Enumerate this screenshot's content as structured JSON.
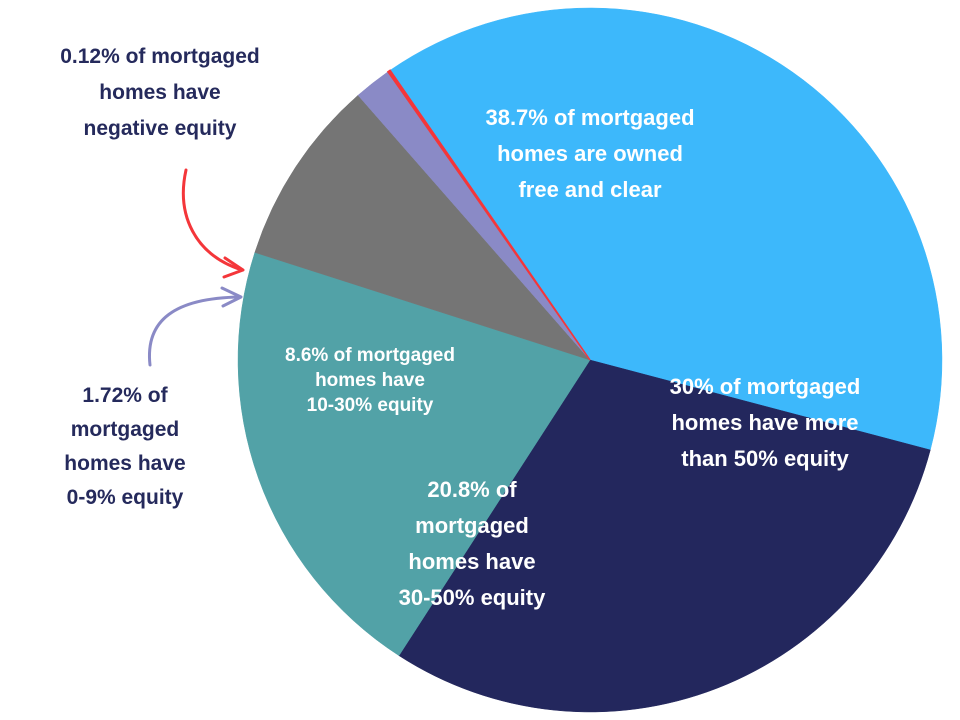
{
  "chart_data": {
    "type": "pie",
    "slices": [
      {
        "id": "free-clear",
        "value": 38.7,
        "color": "#3db8fb",
        "label_lines": [
          "38.7% of mortgaged",
          "homes are owned",
          "free and clear"
        ]
      },
      {
        "id": "over-50",
        "value": 30,
        "color": "#23275d",
        "label_lines": [
          "30% of mortgaged",
          "homes have more",
          "than 50% equity"
        ]
      },
      {
        "id": "30-50",
        "value": 20.8,
        "color": "#52a2a7",
        "label_lines": [
          "20.8% of",
          "mortgaged",
          "homes have",
          "30-50% equity"
        ]
      },
      {
        "id": "10-30",
        "value": 8.6,
        "color": "#757575",
        "label_lines": [
          "8.6% of mortgaged",
          "homes have",
          "10-30% equity"
        ]
      },
      {
        "id": "0-9",
        "value": 1.72,
        "color": "#8a8ac6",
        "label_lines": [
          "1.72% of",
          "mortgaged",
          "homes have",
          "0-9% equity"
        ]
      },
      {
        "id": "negative",
        "value": 0.12,
        "color": "#f4363a",
        "label_lines": [
          "0.12% of mortgaged",
          "homes have",
          "negative equity"
        ]
      }
    ],
    "arrow_colors": {
      "negative": "#f4363a",
      "0-9": "#8a8ac6"
    }
  }
}
